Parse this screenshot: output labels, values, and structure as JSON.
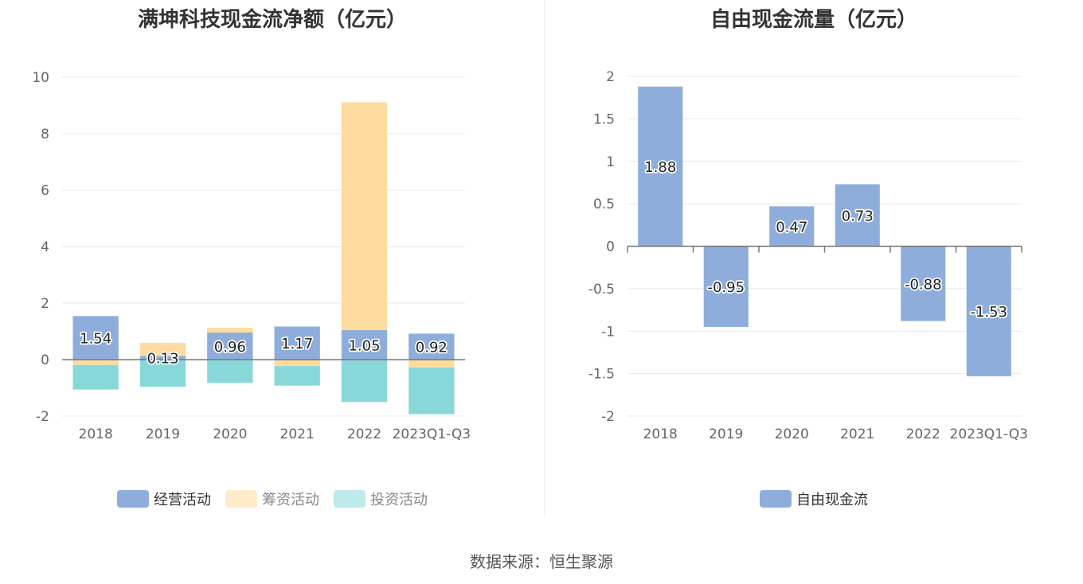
{
  "charts": [
    {
      "title": "满坤科技现金流净额（亿元）",
      "type": "bar",
      "stacked": true,
      "categories": [
        "2018",
        "2019",
        "2020",
        "2021",
        "2022",
        "2023Q1-Q3"
      ],
      "ylim": [
        -2,
        10
      ],
      "yticks": [
        -2,
        0,
        2,
        4,
        6,
        8,
        10
      ],
      "grid": true,
      "legend_position": "bottom",
      "series": [
        {
          "name": "经营活动",
          "color": "#8eadda",
          "values": [
            1.54,
            0.13,
            0.96,
            1.17,
            1.05,
            0.92
          ],
          "show_labels": true
        },
        {
          "name": "筹资活动",
          "color": "#fedb9e",
          "values": [
            -0.19,
            0.46,
            0.17,
            -0.23,
            8.06,
            -0.28
          ]
        },
        {
          "name": "投资活动",
          "color": "#88d8da",
          "values": [
            -0.87,
            -0.96,
            -0.82,
            -0.69,
            -1.5,
            -1.65
          ]
        }
      ]
    },
    {
      "title": "自由现金流量（亿元）",
      "type": "bar",
      "stacked": false,
      "categories": [
        "2018",
        "2019",
        "2020",
        "2021",
        "2022",
        "2023Q1-Q3"
      ],
      "ylim": [
        -2,
        2
      ],
      "yticks": [
        -2,
        -1.5,
        -1,
        -0.5,
        0,
        0.5,
        1,
        1.5,
        2
      ],
      "grid": true,
      "legend_position": "bottom",
      "series": [
        {
          "name": "自由现金流",
          "color": "#8eadda",
          "values": [
            1.88,
            -0.95,
            0.47,
            0.73,
            -0.88,
            -1.53
          ],
          "show_labels": true
        }
      ]
    }
  ],
  "chart_data": [
    {
      "type": "bar",
      "title": "满坤科技现金流净额（亿元）",
      "categories": [
        "2018",
        "2019",
        "2020",
        "2021",
        "2022",
        "2023Q1-Q3"
      ],
      "series": [
        {
          "name": "经营活动",
          "values": [
            1.54,
            0.13,
            0.96,
            1.17,
            1.05,
            0.92
          ]
        },
        {
          "name": "筹资活动",
          "values": [
            -0.19,
            0.46,
            0.17,
            -0.23,
            8.06,
            -0.28
          ]
        },
        {
          "name": "投资活动",
          "values": [
            -0.87,
            -0.96,
            -0.82,
            -0.69,
            -1.5,
            -1.65
          ]
        }
      ],
      "ylim": [
        -2,
        10
      ]
    },
    {
      "type": "bar",
      "title": "自由现金流量（亿元）",
      "categories": [
        "2018",
        "2019",
        "2020",
        "2021",
        "2022",
        "2023Q1-Q3"
      ],
      "series": [
        {
          "name": "自由现金流",
          "values": [
            1.88,
            -0.95,
            0.47,
            0.73,
            -0.88,
            -1.53
          ]
        }
      ],
      "ylim": [
        -2,
        2
      ]
    }
  ],
  "source": "数据来源：恒生聚源"
}
